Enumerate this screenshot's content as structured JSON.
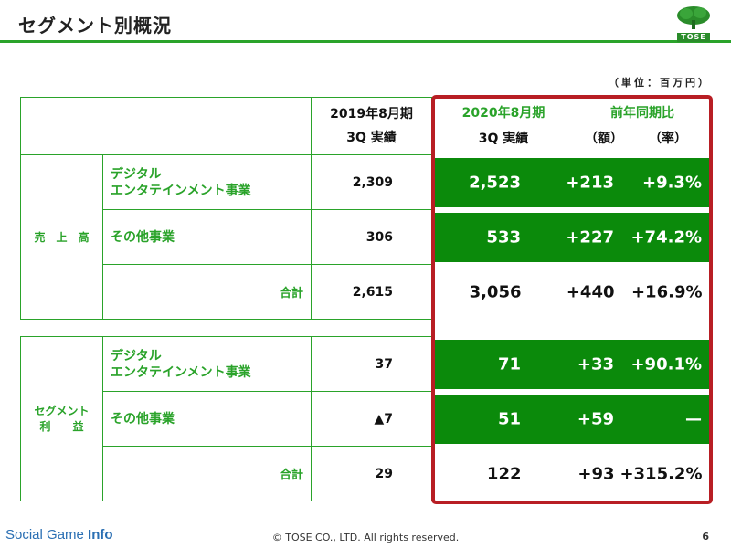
{
  "title": "セグメント別概況",
  "logo": {
    "text": "TOSE"
  },
  "unit": "（単位：百万円）",
  "headers": {
    "prev_line1": "2019年8月期",
    "prev_line2": "3Q 実績",
    "cur_line1": "2020年8月期",
    "cur_line2": "3Q 実績",
    "yoy": "前年同期比",
    "amount": "（額）",
    "rate": "（率）"
  },
  "sales": {
    "label": "売　上　高",
    "rows": [
      {
        "name": "デジタル\nエンタテインメント事業",
        "name1": "デジタル",
        "name2": "エンタテインメント事業",
        "prev": "2,309",
        "cur": "2,523",
        "diff": "+213",
        "rate": "+9.3%"
      },
      {
        "name1": "その他事業",
        "prev": "306",
        "cur": "533",
        "diff": "+227",
        "rate": "+74.2%"
      }
    ],
    "total": {
      "label": "合計",
      "prev": "2,615",
      "cur": "3,056",
      "diff": "+440",
      "rate": "+16.9%"
    }
  },
  "profit": {
    "label1": "セグメント",
    "label2": "利　　益",
    "rows": [
      {
        "name1": "デジタル",
        "name2": "エンタテインメント事業",
        "prev": "37",
        "cur": "71",
        "diff": "+33",
        "rate": "+90.1%"
      },
      {
        "name1": "その他事業",
        "prev": "▲7",
        "cur": "51",
        "diff": "+59",
        "rate": "—"
      }
    ],
    "total": {
      "label": "合計",
      "prev": "29",
      "cur": "122",
      "diff": "+93",
      "rate": "+315.2%"
    }
  },
  "footer": {
    "brand_regular": "Social Game ",
    "brand_bold": "Info",
    "copyright": "© TOSE CO., LTD. All rights reserved.",
    "page": "6"
  },
  "colors": {
    "accent_green": "#2aa32a",
    "cell_green": "#0b8a0b",
    "highlight_red": "#b81e24"
  }
}
